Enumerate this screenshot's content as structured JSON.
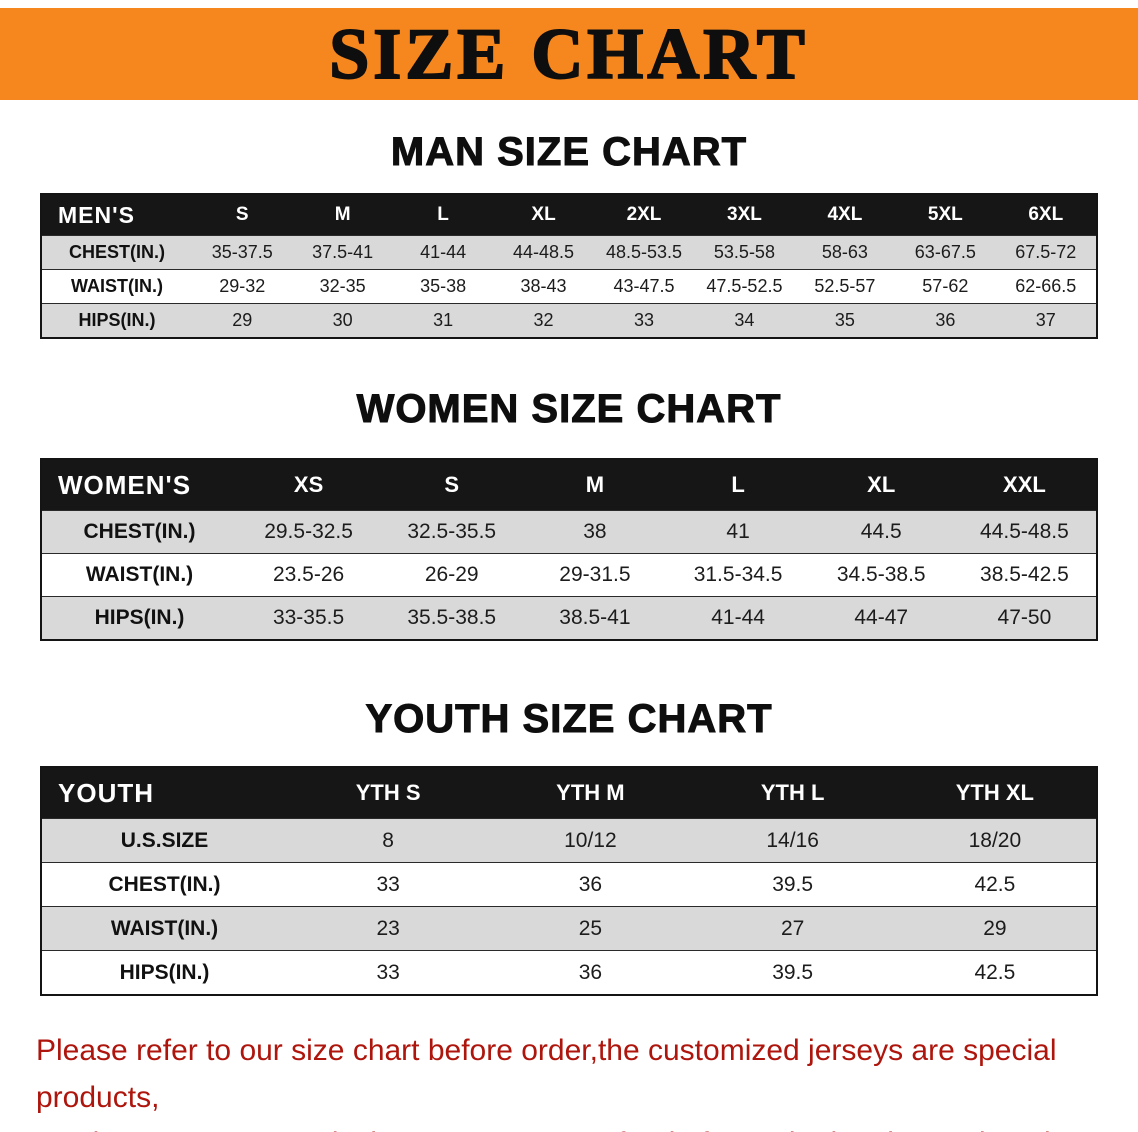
{
  "banner": {
    "title": "SIZE CHART"
  },
  "colors": {
    "banner_bg": "#f6871f",
    "table_header_bg": "#161616",
    "row_shade": "#d9d9d9",
    "note_text": "#ae150c"
  },
  "sections": [
    {
      "heading": "MAN SIZE CHART",
      "table": {
        "corner": "MEN'S",
        "columns": [
          "S",
          "M",
          "L",
          "XL",
          "2XL",
          "3XL",
          "4XL",
          "5XL",
          "6XL"
        ],
        "rows": [
          {
            "label": "CHEST(IN.)",
            "values": [
              "35-37.5",
              "37.5-41",
              "41-44",
              "44-48.5",
              "48.5-53.5",
              "53.5-58",
              "58-63",
              "63-67.5",
              "67.5-72"
            ]
          },
          {
            "label": "WAIST(IN.)",
            "values": [
              "29-32",
              "32-35",
              "35-38",
              "38-43",
              "43-47.5",
              "47.5-52.5",
              "52.5-57",
              "57-62",
              "62-66.5"
            ]
          },
          {
            "label": "HIPS(IN.)",
            "values": [
              "29",
              "30",
              "31",
              "32",
              "33",
              "34",
              "35",
              "36",
              "37"
            ]
          }
        ]
      }
    },
    {
      "heading": "WOMEN SIZE CHART",
      "table": {
        "corner": "WOMEN'S",
        "columns": [
          "XS",
          "S",
          "M",
          "L",
          "XL",
          "XXL"
        ],
        "rows": [
          {
            "label": "CHEST(IN.)",
            "values": [
              "29.5-32.5",
              "32.5-35.5",
              "38",
              "41",
              "44.5",
              "44.5-48.5"
            ]
          },
          {
            "label": "WAIST(IN.)",
            "values": [
              "23.5-26",
              "26-29",
              "29-31.5",
              "31.5-34.5",
              "34.5-38.5",
              "38.5-42.5"
            ]
          },
          {
            "label": "HIPS(IN.)",
            "values": [
              "33-35.5",
              "35.5-38.5",
              "38.5-41",
              "41-44",
              "44-47",
              "47-50"
            ]
          }
        ]
      }
    },
    {
      "heading": "YOUTH SIZE CHART",
      "table": {
        "corner": "YOUTH",
        "columns": [
          "YTH S",
          "YTH M",
          "YTH L",
          "YTH XL"
        ],
        "rows": [
          {
            "label": "U.S.SIZE",
            "values": [
              "8",
              "10/12",
              "14/16",
              "18/20"
            ]
          },
          {
            "label": "CHEST(IN.)",
            "values": [
              "33",
              "36",
              "39.5",
              "42.5"
            ]
          },
          {
            "label": "WAIST(IN.)",
            "values": [
              "23",
              "25",
              "27",
              "29"
            ]
          },
          {
            "label": "HIPS(IN.)",
            "values": [
              "33",
              "36",
              "39.5",
              "42.5"
            ]
          }
        ]
      }
    }
  ],
  "note": {
    "line1": "Please refer to our size chart before order,the customized jerseys are special products,",
    "line2": "we don't accept cancel, change, teturn or refund after order has been placed!"
  }
}
